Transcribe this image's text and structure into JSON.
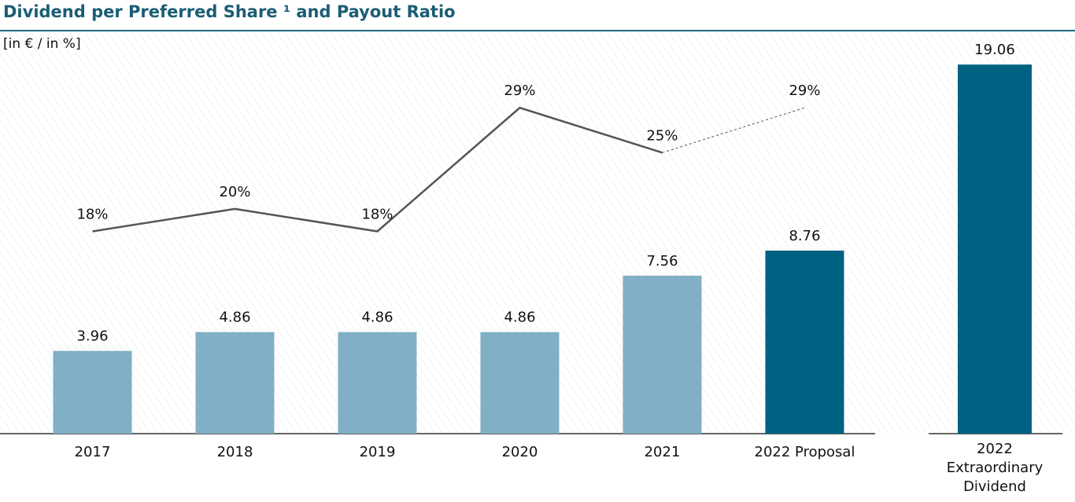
{
  "chart_data": [
    {
      "type": "bar",
      "title": "Dividend per Preferred Share ¹ and Payout Ratio",
      "subtitle": "[in € / in %]",
      "categories": [
        "2017",
        "2018",
        "2019",
        "2020",
        "2021",
        "2022 Proposal"
      ],
      "ylim": [
        0,
        20
      ],
      "y2lim": [
        0,
        36
      ],
      "series": [
        {
          "name": "Dividend per Preferred Share",
          "type": "bar",
          "colors": [
            "#80afc6",
            "#80afc6",
            "#80afc6",
            "#80afc6",
            "#80afc6",
            "#006282"
          ],
          "values": [
            3.96,
            4.86,
            4.86,
            4.86,
            7.56,
            8.76
          ]
        },
        {
          "name": "Payout Ratio",
          "type": "line",
          "axis": "y2",
          "color": "#555555",
          "dashed_last_segment": true,
          "values": [
            18,
            20,
            18,
            29,
            25,
            29
          ],
          "value_labels": [
            "18%",
            "20%",
            "18%",
            "29%",
            "25%",
            "29%"
          ]
        }
      ]
    },
    {
      "type": "bar",
      "categories": [
        "2022 Extraordinary Dividend"
      ],
      "ylim": [
        0,
        20
      ],
      "series": [
        {
          "name": "Extraordinary Dividend",
          "type": "bar",
          "colors": [
            "#006282"
          ],
          "values": [
            19.06
          ]
        }
      ]
    }
  ]
}
